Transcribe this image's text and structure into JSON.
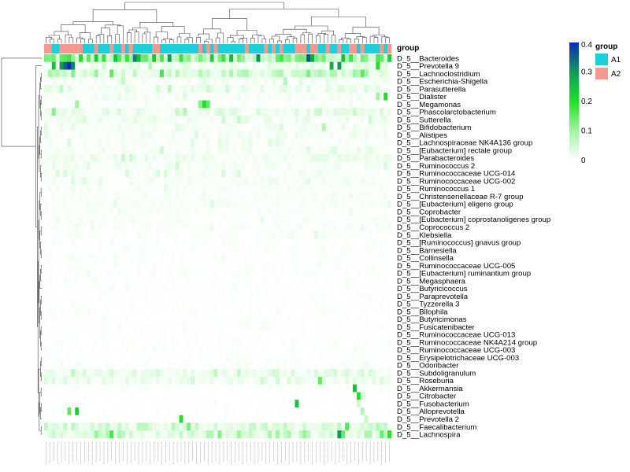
{
  "chart_data": {
    "type": "heatmap",
    "title": "",
    "annotation_title": "group",
    "groups": [
      {
        "name": "A1",
        "color": "#1ad1d9"
      },
      {
        "name": "A2",
        "color": "#f4998f"
      }
    ],
    "group_legend_title": "group",
    "colorbar": {
      "ticks": [
        "0",
        "0.1",
        "0.2",
        "0.3",
        "0.4"
      ],
      "tick_values": [
        0,
        0.1,
        0.2,
        0.3,
        0.4
      ],
      "range": [
        0,
        0.4
      ],
      "stops": [
        "#ffffff",
        "#9ff5a2",
        "#21e023",
        "#109b58",
        "#0a2bbf"
      ]
    },
    "sample_count": 90,
    "group_pattern": "A2,A2,A1,A1,A2,A2,A2,A2,A2,A2,A1,A1,A1,A2,A1,A1,A1,A2,A1,A1,A2,A1,A2,A1,A1,A1,A1,A1,A2,A2,A1,A1,A1,A1,A1,A1,A1,A1,A1,A1,A2,A1,A2,A1,A2,A1,A1,A1,A1,A1,A1,A1,A2,A1,A1,A1,A1,A2,A1,A2,A1,A2,A1,A1,A1,A2,A2,A2,A1,A2,A2,A1,A1,A2,A1,A1,A2,A1,A1,A2,A2,A1,A2,A1,A1,A1,A1,A2,A1,A2",
    "rows": [
      {
        "label": "D_5__Bacteroides",
        "level": 0.14,
        "hotspots": [
          [
            55,
            0.31
          ],
          [
            68,
            0.36
          ],
          [
            69,
            0.28
          ],
          [
            28,
            0.24
          ]
        ]
      },
      {
        "label": "D_5__Prevotella 9",
        "level": 0.02,
        "hotspots": [
          [
            4,
            0.3
          ],
          [
            5,
            0.35
          ],
          [
            6,
            0.4
          ],
          [
            7,
            0.32
          ],
          [
            2,
            0.25
          ],
          [
            74,
            0.28
          ],
          [
            76,
            0.3
          ],
          [
            86,
            0.2
          ]
        ]
      },
      {
        "label": "D_5__Lachnoclostridium",
        "level": 0.05,
        "hotspots": [
          [
            80,
            0.1
          ]
        ]
      },
      {
        "label": "D_5__Escherichia-Shigella",
        "level": 0.01,
        "hotspots": [
          [
            20,
            0.06
          ],
          [
            62,
            0.08
          ]
        ]
      },
      {
        "label": "D_5__Parasutterella",
        "level": 0.02,
        "hotspots": [
          [
            42,
            0.05
          ]
        ]
      },
      {
        "label": "D_5__Dialister",
        "level": 0.01,
        "hotspots": [
          [
            88,
            0.2
          ],
          [
            86,
            0.1
          ]
        ]
      },
      {
        "label": "D_5__Megamonas",
        "level": 0.005,
        "hotspots": [
          [
            41,
            0.2
          ],
          [
            42,
            0.15
          ],
          [
            40,
            0.12
          ],
          [
            8,
            0.1
          ]
        ]
      },
      {
        "label": "D_5__Phascolarctobacterium",
        "level": 0.02,
        "hotspots": [
          [
            2,
            0.12
          ],
          [
            36,
            0.08
          ]
        ]
      },
      {
        "label": "D_5__Sutterella",
        "level": 0.015,
        "hotspots": [
          [
            46,
            0.05
          ]
        ]
      },
      {
        "label": "D_5__Bifidobacterium",
        "level": 0.01,
        "hotspots": [
          [
            72,
            0.08
          ]
        ]
      },
      {
        "label": "D_5__Alistipes",
        "level": 0.012,
        "hotspots": []
      },
      {
        "label": "D_5__Lachnospiraceae NK4A136 group",
        "level": 0.01,
        "hotspots": []
      },
      {
        "label": "D_5__[Eubacterium] rectale group",
        "level": 0.01,
        "hotspots": [
          [
            30,
            0.05
          ]
        ]
      },
      {
        "label": "D_5__Parabacteroides",
        "level": 0.015,
        "hotspots": []
      },
      {
        "label": "D_5__Ruminococcus 2",
        "level": 0.01,
        "hotspots": [
          [
            34,
            0.05
          ]
        ]
      },
      {
        "label": "D_5__Ruminococcaceae UCG-014",
        "level": 0.01,
        "hotspots": [
          [
            31,
            0.04
          ]
        ]
      },
      {
        "label": "D_5__Ruminococcaceae UCG-002",
        "level": 0.01,
        "hotspots": []
      },
      {
        "label": "D_5__Ruminococcus 1",
        "level": 0.008,
        "hotspots": []
      },
      {
        "label": "D_5__Christensenellaceae R-7 group",
        "level": 0.008,
        "hotspots": []
      },
      {
        "label": "D_5__[Eubacterium] eligens group",
        "level": 0.008,
        "hotspots": []
      },
      {
        "label": "D_5__Coprobacter",
        "level": 0.006,
        "hotspots": []
      },
      {
        "label": "D_5__[Eubacterium] coprostanoligenes group",
        "level": 0.006,
        "hotspots": []
      },
      {
        "label": "D_5__Coprococcus 2",
        "level": 0.006,
        "hotspots": []
      },
      {
        "label": "D_5__Klebsiella",
        "level": 0.004,
        "hotspots": [
          [
            70,
            0.03
          ]
        ]
      },
      {
        "label": "D_5__[Ruminococcus] gnavus group",
        "level": 0.004,
        "hotspots": []
      },
      {
        "label": "D_5__Barnesiella",
        "level": 0.004,
        "hotspots": []
      },
      {
        "label": "D_5__Collinsella",
        "level": 0.004,
        "hotspots": []
      },
      {
        "label": "D_5__Ruminococcaceae UCG-005",
        "level": 0.004,
        "hotspots": []
      },
      {
        "label": "D_5__[Eubacterium] ruminantium group",
        "level": 0.004,
        "hotspots": []
      },
      {
        "label": "D_5__Megasphaera",
        "level": 0.003,
        "hotspots": []
      },
      {
        "label": "D_5__Butyricicoccus",
        "level": 0.003,
        "hotspots": []
      },
      {
        "label": "D_5__Paraprevotella",
        "level": 0.003,
        "hotspots": []
      },
      {
        "label": "D_5__Tyzzerella 3",
        "level": 0.003,
        "hotspots": []
      },
      {
        "label": "D_5__Bilophila",
        "level": 0.003,
        "hotspots": []
      },
      {
        "label": "D_5__Butyricimonas",
        "level": 0.003,
        "hotspots": []
      },
      {
        "label": "D_5__Fusicatenibacter",
        "level": 0.003,
        "hotspots": []
      },
      {
        "label": "D_5__Ruminococcaceae UCG-013",
        "level": 0.003,
        "hotspots": []
      },
      {
        "label": "D_5__Ruminococcaceae NK4A214 group",
        "level": 0.003,
        "hotspots": []
      },
      {
        "label": "D_5__Ruminococcaceae UCG-003",
        "level": 0.003,
        "hotspots": []
      },
      {
        "label": "D_5__Erysipelotrichaceae UCG-003",
        "level": 0.003,
        "hotspots": []
      },
      {
        "label": "D_5__Odoribacter",
        "level": 0.005,
        "hotspots": []
      },
      {
        "label": "D_5__Subdoligranulum",
        "level": 0.025,
        "hotspots": [
          [
            50,
            0.06
          ]
        ]
      },
      {
        "label": "D_5__Roseburia",
        "level": 0.02,
        "hotspots": [
          [
            71,
            0.15
          ],
          [
            60,
            0.05
          ]
        ]
      },
      {
        "label": "D_5__Akkermansia",
        "level": 0.003,
        "hotspots": [
          [
            80,
            0.25
          ]
        ]
      },
      {
        "label": "D_5__Citrobacter",
        "level": 0.002,
        "hotspots": [
          [
            81,
            0.2
          ],
          [
            82,
            0.05
          ]
        ]
      },
      {
        "label": "D_5__Fusobacterium",
        "level": 0.002,
        "hotspots": [
          [
            65,
            0.25
          ],
          [
            81,
            0.05
          ]
        ]
      },
      {
        "label": "D_5__Alloprevotella",
        "level": 0.002,
        "hotspots": [
          [
            8,
            0.22
          ],
          [
            6,
            0.15
          ],
          [
            82,
            0.08
          ]
        ]
      },
      {
        "label": "D_5__Prevotella 2",
        "level": 0.002,
        "hotspots": [
          [
            35,
            0.2
          ],
          [
            83,
            0.06
          ]
        ]
      },
      {
        "label": "D_5__Faecalibacterium",
        "level": 0.04,
        "hotspots": [
          [
            78,
            0.16
          ],
          [
            86,
            0.08
          ]
        ]
      },
      {
        "label": "D_5__Lachnospira",
        "level": 0.05,
        "hotspots": [
          [
            76,
            0.3
          ],
          [
            45,
            0.12
          ],
          [
            50,
            0.1
          ],
          [
            60,
            0.1
          ]
        ]
      }
    ]
  }
}
